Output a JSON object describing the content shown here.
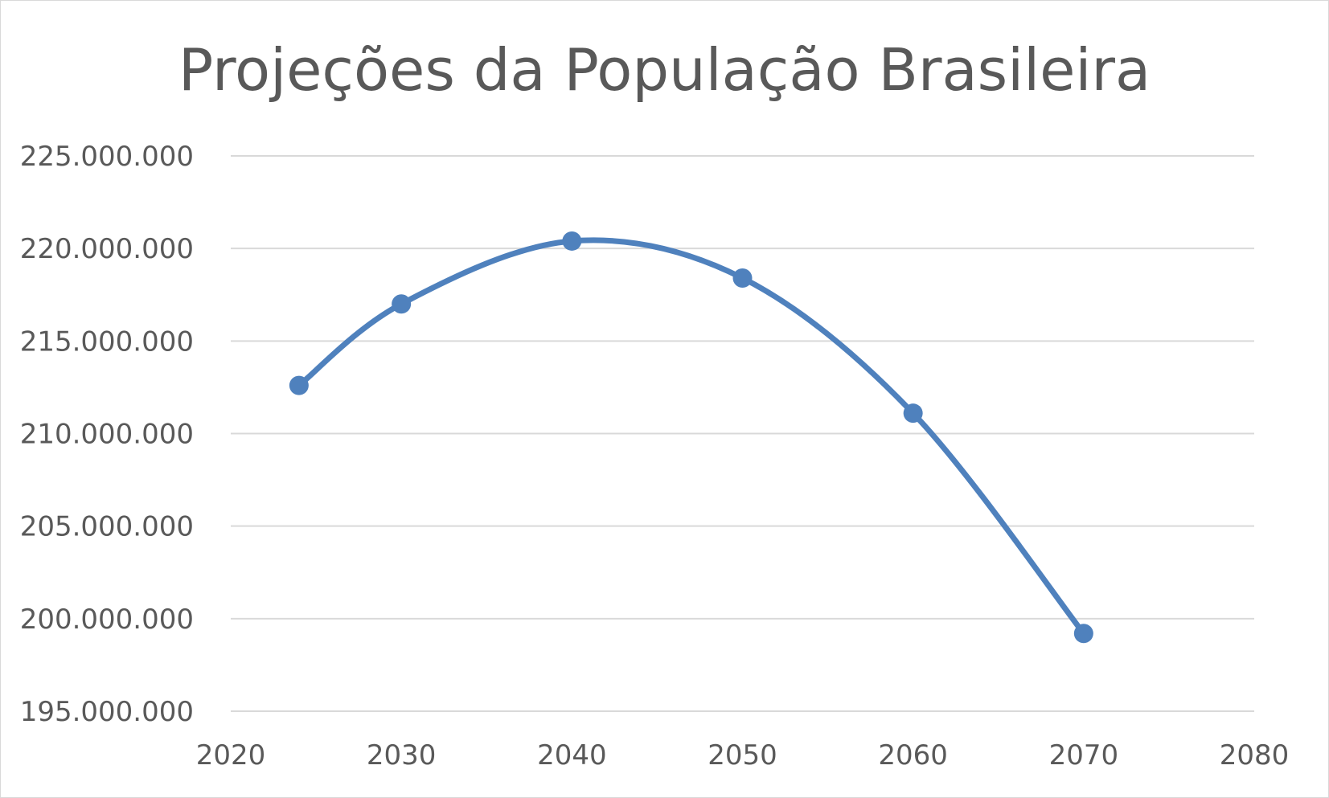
{
  "chart_data": {
    "type": "line",
    "title": "Projeções da População Brasileira",
    "xlabel": "",
    "ylabel": "",
    "x": [
      2024,
      2030,
      2040,
      2050,
      2060,
      2070
    ],
    "series": [
      {
        "values": [
          212600000,
          217000000,
          220400000,
          218400000,
          211100000,
          199200000
        ]
      }
    ],
    "xlim": [
      2020,
      2080
    ],
    "ylim": [
      195000000,
      225000000
    ],
    "x_ticks": [
      2020,
      2030,
      2040,
      2050,
      2060,
      2070,
      2080
    ],
    "x_tick_labels": [
      "2020",
      "2030",
      "2040",
      "2050",
      "2060",
      "2070",
      "2080"
    ],
    "y_ticks": [
      195000000,
      200000000,
      205000000,
      210000000,
      215000000,
      220000000,
      225000000
    ],
    "y_tick_labels": [
      "195.000.000",
      "200.000.000",
      "205.000.000",
      "210.000.000",
      "215.000.000",
      "220.000.000",
      "225.000.000"
    ],
    "grid": "horizontal",
    "smoothed": true,
    "markers": true,
    "legend": "none",
    "colors": {
      "series": "#4f81bd",
      "grid": "#d9d9d9",
      "text": "#595959"
    }
  }
}
